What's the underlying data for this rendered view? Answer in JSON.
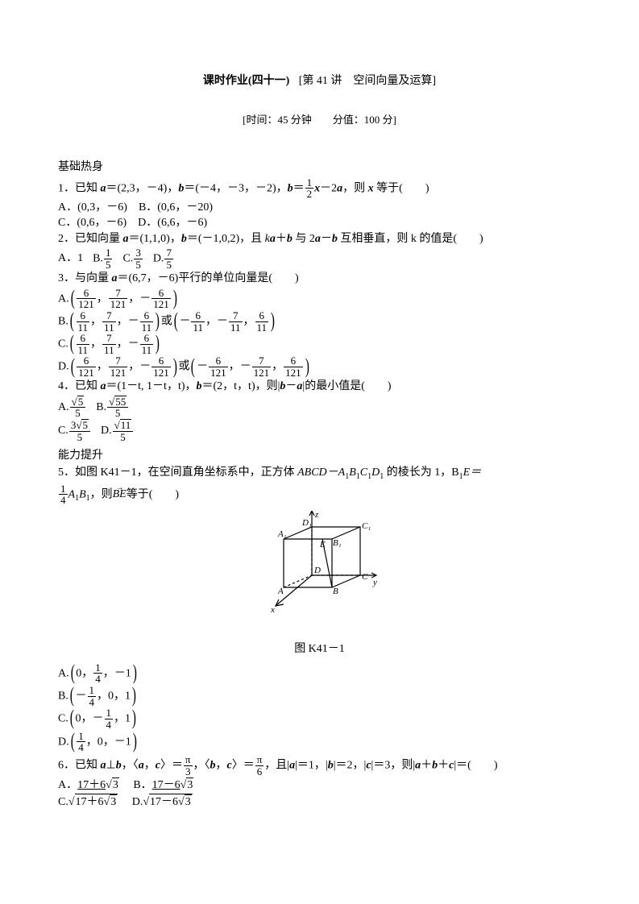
{
  "header": {
    "title_main": "课时作业(四十一)",
    "title_sub": "[第 41 讲　空间向量及运算]",
    "info": "[时间：45 分钟　　分值：100 分]"
  },
  "section1_label": "基础热身",
  "q1": {
    "stem_pre": "1．已知 ",
    "a_eq": "＝(2,3，－4)，",
    "b_eq": "＝(－4，－3，－2)，",
    "mid": "＝",
    "frac_num": "1",
    "frac_den": "2",
    "tail": "－2",
    "end": "，则 ",
    "eq_label": " 等于(　　)",
    "A": "A．(0,3，－6)",
    "B": "B．(0,6，－20)",
    "C": "C．(0,6，－6)",
    "D": "D．(6,6，－6)"
  },
  "q2": {
    "stem": "2．已知向量 ",
    "a_eq": "＝(1,1,0)，",
    "b_eq": "＝(－1,0,2)，且 ",
    "mid": "k",
    "plus": "＋",
    "with": " 与 2",
    "minus": "－",
    "tail": " 互相垂直，则 k 的值是(　　)",
    "A": "A．1",
    "B_pre": "B.",
    "B_num": "1",
    "B_den": "5",
    "C_pre": "C.",
    "C_num": "3",
    "C_den": "5",
    "D_pre": "D.",
    "D_num": "7",
    "D_den": "5"
  },
  "q3": {
    "stem": "3．与向量 ",
    "a_eq": "＝(6,7，－6)平行的单位向量是(　　)",
    "A_pre": "A.",
    "A_v": [
      "6",
      "7",
      "6"
    ],
    "A_d": "121",
    "A_neg": [
      false,
      false,
      true
    ],
    "B_pre": "B.",
    "B_v": [
      "6",
      "7",
      "6"
    ],
    "B_d": "11",
    "B_neg": [
      false,
      false,
      true
    ],
    "B_or": "或",
    "B2_v": [
      "6",
      "7",
      "6"
    ],
    "B2_d": "11",
    "B2_neg": [
      true,
      true,
      false
    ],
    "C_pre": "C.",
    "C_v": [
      "6",
      "7",
      "6"
    ],
    "C_d": "11",
    "C_neg": [
      false,
      false,
      true
    ],
    "D_pre": "D.",
    "D_v": [
      "6",
      "7",
      "6"
    ],
    "D_d": "121",
    "D_neg": [
      false,
      false,
      true
    ],
    "D_or": "或",
    "D2_v": [
      "6",
      "7",
      "6"
    ],
    "D2_d": "121",
    "D2_neg": [
      true,
      true,
      false
    ]
  },
  "q4": {
    "stem": "4．已知 ",
    "a_eq": "＝(1－t, 1－t，t)，",
    "b_eq": "＝(2，t，t)，则|",
    "mid": "－",
    "end": "|的最小值是(　　)",
    "A_pre": "A.",
    "A_num": "5",
    "A_sqrt": "√",
    "A_den": "5",
    "B_pre": "B.",
    "B_num": "55",
    "B_den": "5",
    "C_pre": "C.",
    "C_num": "3",
    "C_num2": "5",
    "C_den": "5",
    "D_pre": "D.",
    "D_num": "11",
    "D_den": "5"
  },
  "section2_label": "能力提升",
  "q5": {
    "stem_a": "5．如图 K41－1，在空间直角坐标系中，正方体 ",
    "cube": "ABCD－A",
    "cube2": "B",
    "cube3": "C",
    "cube4": "D",
    "stem_b": " 的棱长为 1，B",
    "stem_c": "E＝",
    "frac_pre_num": "1",
    "frac_pre_den": "4",
    "mid": "A",
    "mid2": "B",
    "tail": "，则",
    "vec": "BE",
    "tail2": "等于(　　)",
    "fig_caption": "图 K41－1",
    "A_pre": "A.",
    "A": [
      "0",
      "1/4",
      "－1"
    ],
    "B_pre": "B.",
    "B": [
      "－1/4",
      "0",
      "1"
    ],
    "C_pre": "C.",
    "C": [
      "0",
      "－1/4",
      "1"
    ],
    "D_pre": "D.",
    "D": [
      "1/4",
      "0",
      "－1"
    ]
  },
  "q6": {
    "stem_a": "6．已知 ",
    "perp": "⊥",
    "ang1": "，〈",
    "ang1b": "，",
    "ang1c": "〉＝",
    "pi3_num": "π",
    "pi3_den": "3",
    "ang2": "，〈",
    "ang2b": "，",
    "ang2c": "〉＝",
    "pi6_num": "π",
    "pi6_den": "6",
    "mag": "，且|",
    "a1": "|＝1，|",
    "b2": "|＝2，|",
    "c3": "|＝3，则|",
    "sum": "＋",
    "sum2": "＋",
    "end": "|＝(　　)",
    "A": "A．",
    "A_body": "17＋6",
    "A_sqrt": "3",
    "B": "B．",
    "B_body": "17－6",
    "B_sqrt": "3",
    "C": "C.",
    "C_body": "17＋6",
    "C_sqrt": "3",
    "D": "D.",
    "D_body": "17－6",
    "D_sqrt": "3"
  },
  "cube_labels": {
    "A": "A",
    "B": "B",
    "C": "C",
    "D": "D",
    "A1": "A₁",
    "B1": "B₁",
    "C1": "C₁",
    "D1": "D₁",
    "E": "E",
    "x": "x",
    "y": "y",
    "z": "z"
  }
}
